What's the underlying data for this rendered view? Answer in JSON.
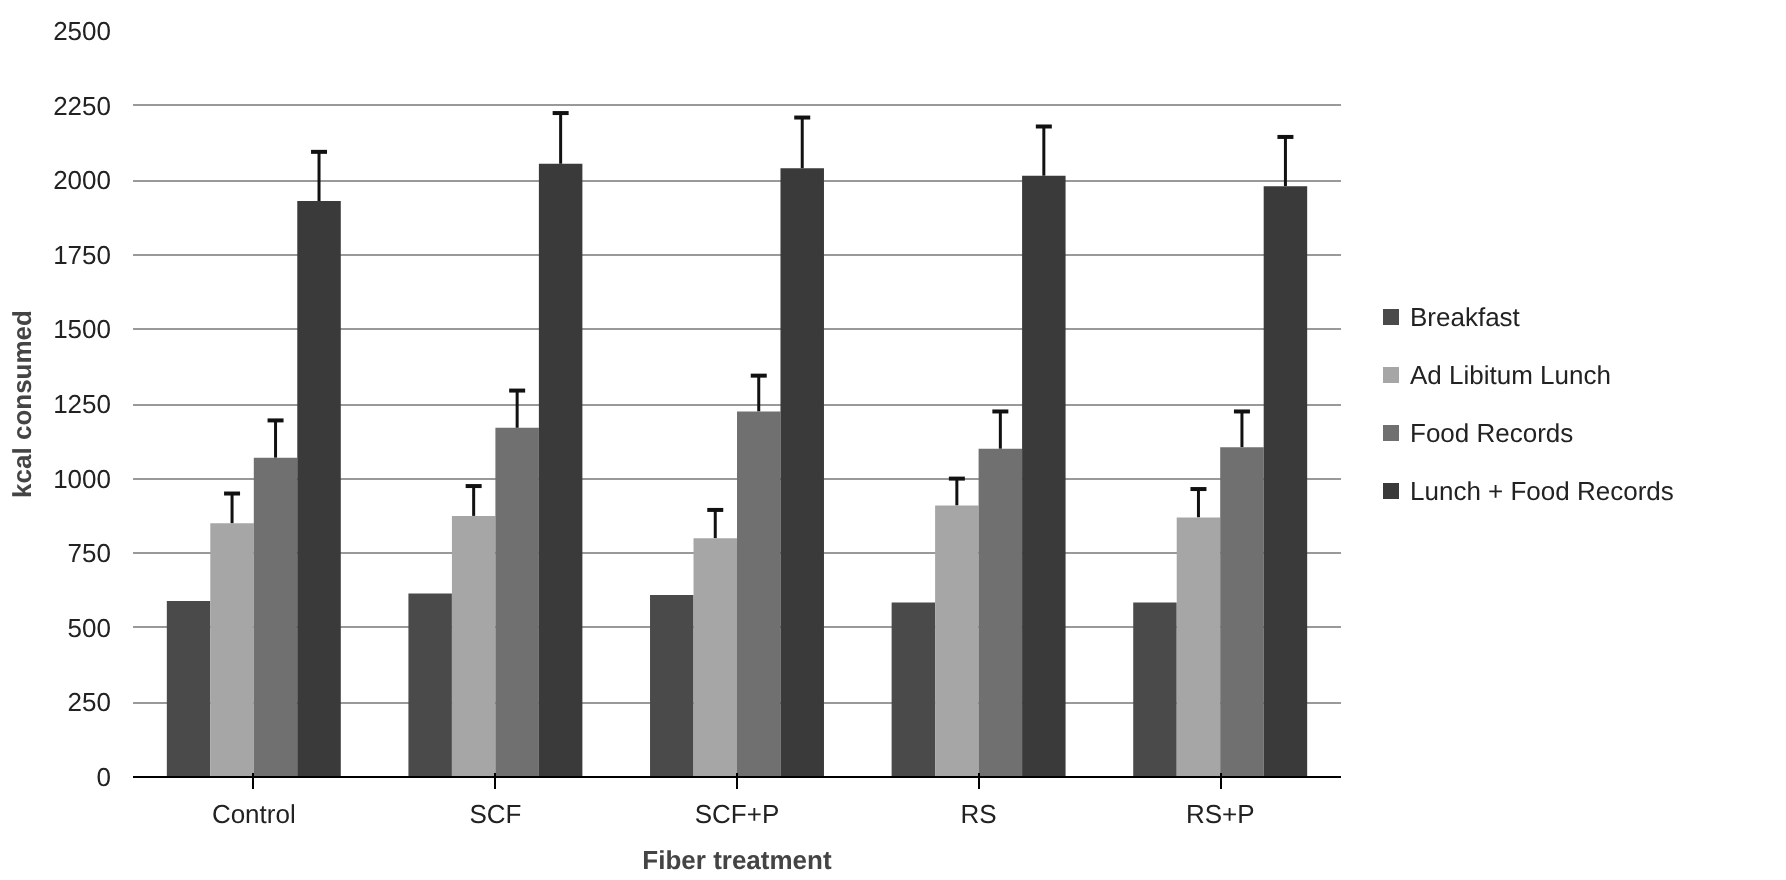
{
  "chart_data": {
    "type": "bar",
    "xlabel": "Fiber treatment",
    "ylabel": "kcal consumed",
    "categories": [
      "Control",
      "SCF",
      "SCF+P",
      "RS",
      "RS+P"
    ],
    "series": [
      {
        "name": "Breakfast",
        "color": "#4a4a4a",
        "values": [
          590,
          615,
          610,
          585,
          585
        ]
      },
      {
        "name": "Ad Libitum Lunch",
        "color": "#a6a6a6",
        "values": [
          850,
          875,
          800,
          910,
          870
        ],
        "errors": [
          100,
          100,
          95,
          90,
          95
        ]
      },
      {
        "name": "Food Records",
        "color": "#707070",
        "values": [
          1070,
          1170,
          1225,
          1100,
          1105
        ],
        "errors": [
          125,
          125,
          120,
          125,
          120
        ]
      },
      {
        "name": "Lunch + Food Records",
        "color": "#3a3a3a",
        "values": [
          1930,
          2055,
          2040,
          2015,
          1980
        ],
        "errors": [
          165,
          170,
          170,
          165,
          165
        ]
      }
    ],
    "ylim": [
      0,
      2500
    ],
    "yticks": [
      0,
      250,
      500,
      750,
      1000,
      1250,
      1500,
      1750,
      2000,
      2250,
      2500
    ],
    "grid": "y",
    "legend": "right"
  }
}
